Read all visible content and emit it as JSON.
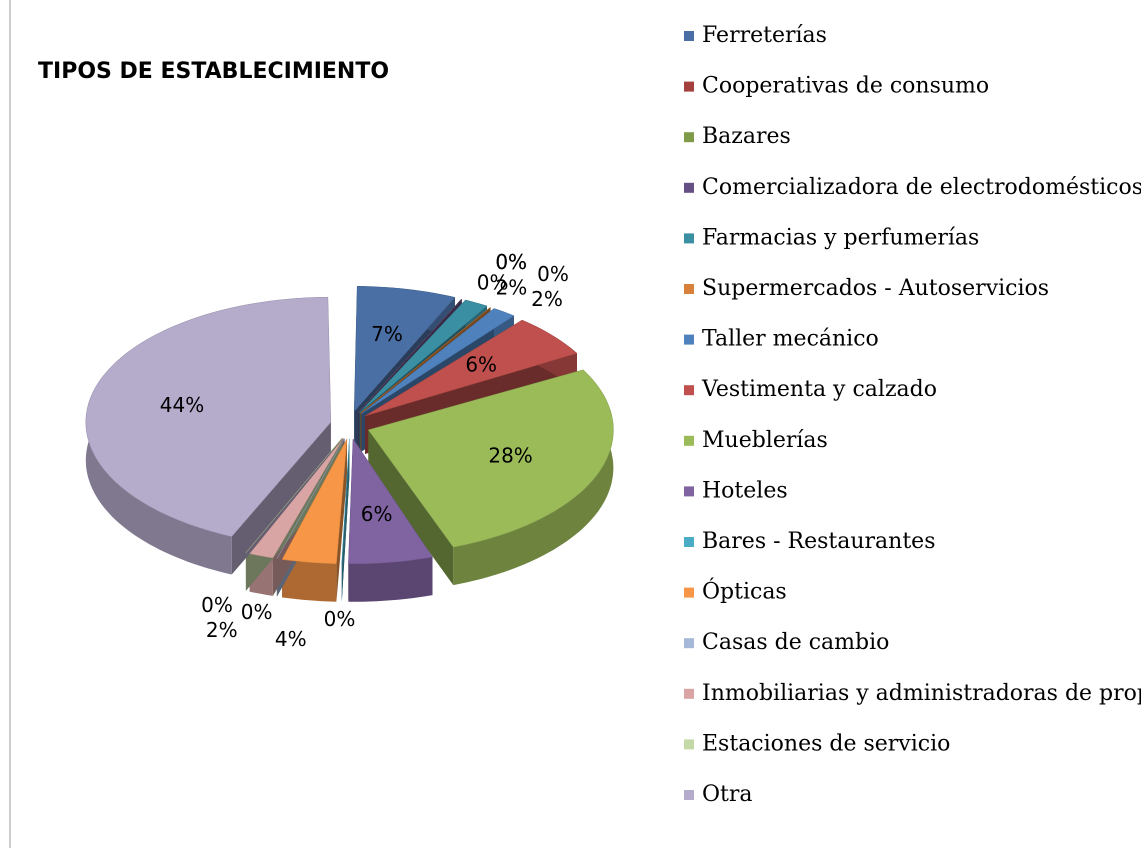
{
  "chart_data": {
    "type": "pie",
    "title": "TIPOS DE ESTABLECIMIENTO",
    "categories": [
      "Ferreterías",
      "Cooperativas de consumo",
      "Bazares",
      "Comercializadora de electrodomésticos",
      "Farmacias y perfumerías",
      "Supermercados - Autoservicios",
      "Taller mecánico",
      "Vestimenta y calzado",
      "Mueblerías",
      "Hoteles",
      "Bares - Restaurantes",
      "Ópticas",
      "Casas de cambio",
      "Inmobiliarias y administradoras de propiedades",
      "Estaciones de servicio",
      "Otra"
    ],
    "values": [
      7,
      0,
      0,
      0,
      2,
      0,
      2,
      6,
      28,
      6,
      0,
      4,
      0,
      2,
      0,
      44
    ],
    "value_labels": [
      "7%",
      "0%",
      "0%",
      "0%",
      "2%",
      "0%",
      "2%",
      "6%",
      "28%",
      "6%",
      "0%",
      "4%",
      "0%",
      "2%",
      "0%",
      "44%"
    ],
    "colors": [
      "#4a6fa5",
      "#a33f3c",
      "#7f9a48",
      "#664f85",
      "#3b8fa3",
      "#d8813a",
      "#4f81bd",
      "#c0504d",
      "#9bbb59",
      "#8064a2",
      "#4bacc6",
      "#f79646",
      "#a5b8d9",
      "#d9a5a4",
      "#c4d9a5",
      "#b5abcb"
    ]
  }
}
